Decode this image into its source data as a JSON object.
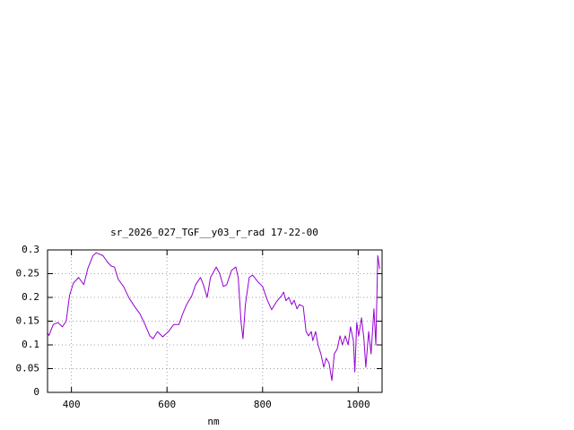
{
  "chart_data": {
    "type": "line",
    "title": "sr_2026_027_TGF__y03_r_rad 17-22-00",
    "x_label": "nm",
    "xlim": [
      350,
      1050
    ],
    "ylim": [
      0,
      0.3
    ],
    "xticks": [
      400,
      600,
      800,
      1000
    ],
    "yticks": [
      0,
      0.05,
      0.1,
      0.15,
      0.2,
      0.25,
      0.3
    ],
    "grid": true,
    "x": [
      350,
      353,
      362,
      372,
      381,
      389,
      396,
      404,
      415,
      426,
      434,
      445,
      452,
      466,
      475,
      483,
      490,
      498,
      509,
      521,
      532,
      543,
      554,
      564,
      571,
      580,
      591,
      603,
      614,
      625,
      633,
      641,
      652,
      660,
      670,
      676,
      684,
      691,
      703,
      710,
      718,
      725,
      735,
      744,
      749,
      755,
      759,
      764,
      772,
      779,
      791,
      800,
      810,
      819,
      829,
      840,
      844,
      849,
      855,
      861,
      866,
      872,
      877,
      885,
      891,
      896,
      902,
      905,
      911,
      916,
      922,
      928,
      933,
      939,
      945,
      950,
      956,
      962,
      967,
      973,
      979,
      984,
      990,
      993,
      997,
      1001,
      1007,
      1012,
      1016,
      1022,
      1027,
      1033,
      1037,
      1041,
      1045
    ],
    "series": [
      {
        "name": "sr_2026_027_TGF__y03_r_rad",
        "color": "#9400d3",
        "values": [
          0.125,
          0.12,
          0.143,
          0.147,
          0.138,
          0.15,
          0.204,
          0.23,
          0.242,
          0.227,
          0.26,
          0.288,
          0.294,
          0.288,
          0.275,
          0.266,
          0.264,
          0.238,
          0.223,
          0.198,
          0.181,
          0.166,
          0.143,
          0.119,
          0.113,
          0.128,
          0.117,
          0.128,
          0.143,
          0.143,
          0.166,
          0.185,
          0.204,
          0.227,
          0.242,
          0.227,
          0.2,
          0.242,
          0.264,
          0.251,
          0.223,
          0.227,
          0.257,
          0.264,
          0.242,
          0.147,
          0.113,
          0.185,
          0.242,
          0.247,
          0.232,
          0.223,
          0.194,
          0.174,
          0.191,
          0.204,
          0.211,
          0.193,
          0.2,
          0.185,
          0.194,
          0.176,
          0.185,
          0.181,
          0.128,
          0.119,
          0.128,
          0.109,
          0.128,
          0.1,
          0.081,
          0.053,
          0.072,
          0.062,
          0.025,
          0.081,
          0.091,
          0.119,
          0.1,
          0.119,
          0.1,
          0.138,
          0.109,
          0.043,
          0.147,
          0.119,
          0.157,
          0.113,
          0.053,
          0.128,
          0.081,
          0.176,
          0.1,
          0.288,
          0.26
        ]
      }
    ]
  }
}
